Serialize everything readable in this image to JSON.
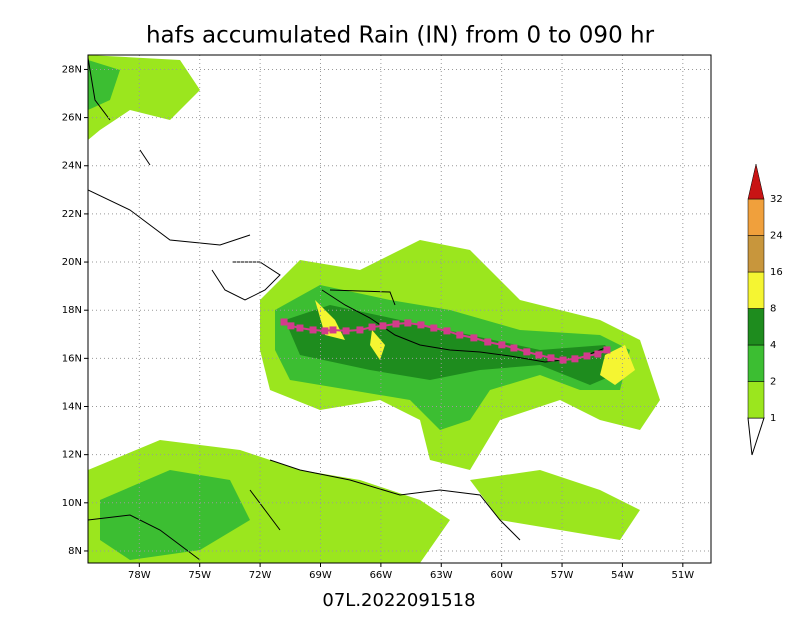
{
  "chart_data": {
    "type": "map",
    "title": "hafs accumulated Rain (IN) from 0 to 090 hr",
    "x_label": "07L.2022091518",
    "xlim": [
      -80.55,
      -49.6
    ],
    "ylim": [
      7.5,
      28.6
    ],
    "xticks": [
      {
        "value": -78,
        "label": "78W"
      },
      {
        "value": -75,
        "label": "75W"
      },
      {
        "value": -72,
        "label": "72W"
      },
      {
        "value": -69,
        "label": "69W"
      },
      {
        "value": -66,
        "label": "66W"
      },
      {
        "value": -63,
        "label": "63W"
      },
      {
        "value": -60,
        "label": "60W"
      },
      {
        "value": -57,
        "label": "57W"
      },
      {
        "value": -54,
        "label": "54W"
      },
      {
        "value": -51,
        "label": "51W"
      }
    ],
    "yticks": [
      {
        "value": 8,
        "label": "8N"
      },
      {
        "value": 10,
        "label": "10N"
      },
      {
        "value": 12,
        "label": "12N"
      },
      {
        "value": 14,
        "label": "14N"
      },
      {
        "value": 16,
        "label": "16N"
      },
      {
        "value": 18,
        "label": "18N"
      },
      {
        "value": 20,
        "label": "20N"
      },
      {
        "value": 22,
        "label": "22N"
      },
      {
        "value": 24,
        "label": "24N"
      },
      {
        "value": 26,
        "label": "26N"
      },
      {
        "value": 28,
        "label": "28N"
      }
    ],
    "grid": true,
    "colorbar": {
      "levels": [
        1,
        2,
        4,
        8,
        16,
        24,
        32
      ],
      "colors": [
        "#9be61e",
        "#3cbe32",
        "#1e8c1e",
        "#f5f532",
        "#c8963c",
        "#f0a03c",
        "#c81414"
      ]
    },
    "track": {
      "color": "#d23c8c",
      "lon": [
        -70.81,
        -70.47,
        -70.02,
        -69.37,
        -68.78,
        -68.38,
        -67.73,
        -67.04,
        -66.44,
        -65.9,
        -65.25,
        -64.66,
        -64.01,
        -63.37,
        -62.72,
        -62.08,
        -61.38,
        -60.69,
        -59.99,
        -59.39,
        -58.75,
        -58.15,
        -57.55,
        -56.95,
        -56.36,
        -55.76,
        -55.22,
        -54.77
      ],
      "lat": [
        17.51,
        17.35,
        17.26,
        17.18,
        17.14,
        17.18,
        17.14,
        17.18,
        17.3,
        17.35,
        17.43,
        17.47,
        17.39,
        17.26,
        17.14,
        16.97,
        16.85,
        16.68,
        16.56,
        16.43,
        16.27,
        16.14,
        16.02,
        15.93,
        15.98,
        16.1,
        16.18,
        16.35
      ]
    }
  }
}
